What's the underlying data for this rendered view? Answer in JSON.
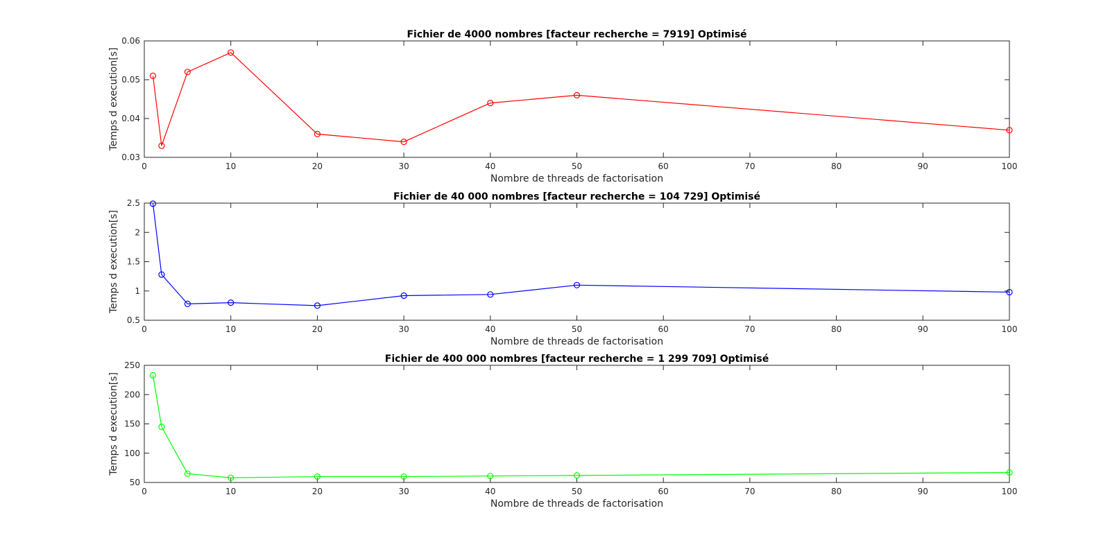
{
  "figure": {
    "background": "#ffffff",
    "axis_color": "#262626"
  },
  "chart_data": [
    {
      "type": "line",
      "title": "Fichier de 4000 nombres [facteur recherche = 7919] Optimisé",
      "xlabel": "Nombre de threads de factorisation",
      "ylabel": "Temps d execution[s]",
      "xlim": [
        0,
        100
      ],
      "ylim": [
        0.03,
        0.06
      ],
      "xticks": [
        0,
        10,
        20,
        30,
        40,
        50,
        60,
        70,
        80,
        90,
        100
      ],
      "yticks": [
        0.03,
        0.04,
        0.05,
        0.06
      ],
      "ytick_labels": [
        "0.03",
        "0.04",
        "0.05",
        "0.06"
      ],
      "grid": false,
      "legend": false,
      "series": [
        {
          "color": "#ff0000",
          "marker": "circle",
          "x": [
            1,
            2,
            5,
            10,
            20,
            30,
            40,
            50,
            100
          ],
          "y": [
            0.051,
            0.033,
            0.052,
            0.057,
            0.036,
            0.034,
            0.044,
            0.046,
            0.037
          ]
        }
      ]
    },
    {
      "type": "line",
      "title": "Fichier de 40 000 nombres [facteur recherche = 104 729] Optimisé",
      "xlabel": "Nombre de threads de factorisation",
      "ylabel": "Temps d execution[s]",
      "xlim": [
        0,
        100
      ],
      "ylim": [
        0.5,
        2.5
      ],
      "xticks": [
        0,
        10,
        20,
        30,
        40,
        50,
        60,
        70,
        80,
        90,
        100
      ],
      "yticks": [
        0.5,
        1,
        1.5,
        2,
        2.5
      ],
      "ytick_labels": [
        "0.5",
        "1",
        "1.5",
        "2",
        "2.5"
      ],
      "grid": false,
      "legend": false,
      "series": [
        {
          "color": "#0000ff",
          "marker": "circle",
          "x": [
            1,
            2,
            5,
            10,
            20,
            30,
            40,
            50,
            100
          ],
          "y": [
            2.49,
            1.28,
            0.78,
            0.8,
            0.75,
            0.92,
            0.94,
            1.1,
            0.98
          ]
        }
      ]
    },
    {
      "type": "line",
      "title": "Fichier de 400 000 nombres [facteur recherche = 1 299 709] Optimisé",
      "xlabel": "Nombre de threads de factorisation",
      "ylabel": "Temps d execution[s]",
      "xlim": [
        0,
        100
      ],
      "ylim": [
        50,
        250
      ],
      "xticks": [
        0,
        10,
        20,
        30,
        40,
        50,
        60,
        70,
        80,
        90,
        100
      ],
      "yticks": [
        50,
        100,
        150,
        200,
        250
      ],
      "ytick_labels": [
        "50",
        "100",
        "150",
        "200",
        "250"
      ],
      "grid": false,
      "legend": false,
      "series": [
        {
          "color": "#00ff00",
          "marker": "circle",
          "x": [
            1,
            2,
            5,
            10,
            20,
            30,
            40,
            50,
            100
          ],
          "y": [
            233,
            145,
            65,
            58,
            60,
            60,
            61,
            62,
            67
          ]
        }
      ]
    }
  ]
}
